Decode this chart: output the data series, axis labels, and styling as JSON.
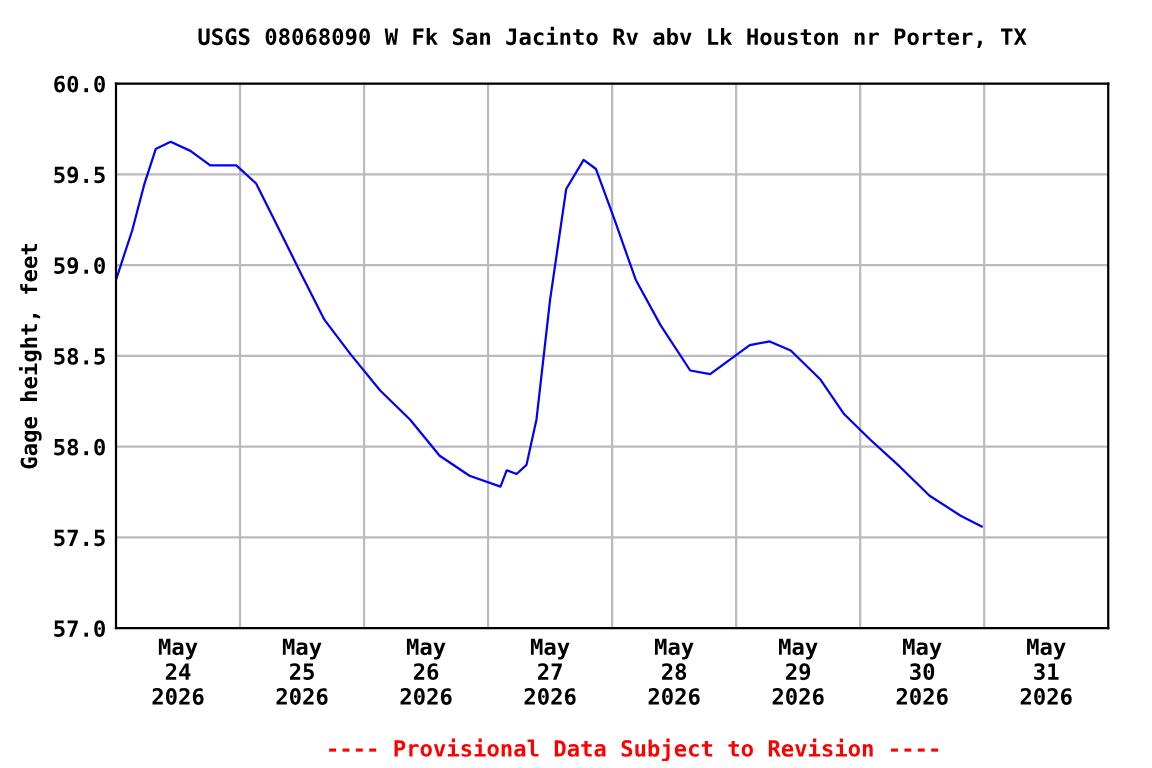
{
  "chart_data": {
    "type": "line",
    "title": "USGS 08068090 W Fk San Jacinto Rv abv Lk Houston nr Porter, TX",
    "ylabel": "Gage height, feet",
    "annotations": [
      "---- Provisional Data Subject to Revision ----"
    ],
    "series": [
      {
        "color": "#0000ff",
        "x": [
          "2026-05-24T00:00",
          "2026-05-24T03:07",
          "2026-05-24T05:31",
          "2026-05-24T07:41",
          "2026-05-24T10:34",
          "2026-05-24T14:24",
          "2026-05-24T18:14",
          "2026-05-24T23:17",
          "2026-05-25T03:07",
          "2026-05-25T07:41",
          "2026-05-25T11:31",
          "2026-05-25T16:19",
          "2026-05-25T21:22",
          "2026-05-26T03:07",
          "2026-05-26T08:53",
          "2026-05-26T14:38",
          "2026-05-26T20:24",
          "2026-05-27T02:24",
          "2026-05-27T03:36",
          "2026-05-27T05:31",
          "2026-05-27T07:26",
          "2026-05-27T09:22",
          "2026-05-27T12:00",
          "2026-05-27T15:07",
          "2026-05-27T18:29",
          "2026-05-27T20:53",
          "2026-05-28T00:29",
          "2026-05-28T04:34",
          "2026-05-28T09:22",
          "2026-05-28T15:07",
          "2026-05-28T18:58",
          "2026-05-28T22:48",
          "2026-05-29T02:38",
          "2026-05-29T06:29",
          "2026-05-29T10:34",
          "2026-05-29T16:19",
          "2026-05-29T20:53",
          "2026-05-30T01:55",
          "2026-05-30T07:41",
          "2026-05-30T13:26",
          "2026-05-30T19:26",
          "2026-05-30T23:31"
        ],
        "values": [
          58.92,
          59.19,
          59.45,
          59.64,
          59.68,
          59.63,
          59.55,
          59.55,
          59.45,
          59.19,
          58.97,
          58.7,
          58.51,
          58.31,
          58.15,
          57.95,
          57.84,
          57.78,
          57.87,
          57.85,
          57.9,
          58.15,
          58.81,
          59.42,
          59.58,
          59.53,
          59.25,
          58.92,
          58.67,
          58.42,
          58.4,
          58.48,
          58.56,
          58.58,
          58.53,
          58.37,
          58.18,
          58.04,
          57.89,
          57.73,
          57.62,
          57.56
        ]
      }
    ],
    "xlim": [
      "2026-05-24T00:00",
      "2026-06-01T00:00"
    ],
    "xticks": [
      {
        "value": "2026-05-24T12:00",
        "label": "May\n24\n2026"
      },
      {
        "value": "2026-05-25T00:00",
        "label": null
      },
      {
        "value": "2026-05-25T12:00",
        "label": "May\n25\n2026"
      },
      {
        "value": "2026-05-26T00:00",
        "label": null
      },
      {
        "value": "2026-05-26T12:00",
        "label": "May\n26\n2026"
      },
      {
        "value": "2026-05-27T00:00",
        "label": null
      },
      {
        "value": "2026-05-27T12:00",
        "label": "May\n27\n2026"
      },
      {
        "value": "2026-05-28T00:00",
        "label": null
      },
      {
        "value": "2026-05-28T12:00",
        "label": "May\n28\n2026"
      },
      {
        "value": "2026-05-29T00:00",
        "label": null
      },
      {
        "value": "2026-05-29T12:00",
        "label": "May\n29\n2026"
      },
      {
        "value": "2026-05-30T00:00",
        "label": null
      },
      {
        "value": "2026-05-30T12:00",
        "label": "May\n30\n2026"
      },
      {
        "value": "2026-05-31T00:00",
        "label": null
      },
      {
        "value": "2026-05-31T12:00",
        "label": "May\n31\n2026"
      }
    ],
    "ylim": [
      57.0,
      60.0
    ],
    "yticks": [
      {
        "value": 57.0,
        "label": "57.0"
      },
      {
        "value": 57.5,
        "label": "57.5"
      },
      {
        "value": 58.0,
        "label": "58.0"
      },
      {
        "value": 58.5,
        "label": "58.5"
      },
      {
        "value": 59.0,
        "label": "59.0"
      },
      {
        "value": 59.5,
        "label": "59.5"
      },
      {
        "value": 60.0,
        "label": "60.0"
      }
    ],
    "grid": true,
    "marker": "none",
    "line_style": "solid"
  }
}
